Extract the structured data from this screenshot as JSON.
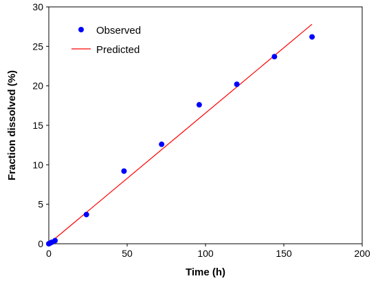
{
  "chart_data": {
    "type": "scatter",
    "title": "",
    "xlabel": "Time (h)",
    "ylabel": "Fraction dissolved (%)",
    "xlim": [
      0,
      200
    ],
    "ylim": [
      0,
      30
    ],
    "xticks": [
      0,
      50,
      100,
      150,
      200
    ],
    "yticks": [
      0,
      5,
      10,
      15,
      20,
      25,
      30
    ],
    "grid": false,
    "legend_position": "top-left",
    "series": [
      {
        "name": "Observed",
        "kind": "scatter",
        "color": "#0000ff",
        "x": [
          0,
          1,
          2,
          4,
          24,
          48,
          72,
          96,
          120,
          144,
          168
        ],
        "y": [
          0,
          0.1,
          0.2,
          0.4,
          3.7,
          9.2,
          12.6,
          17.6,
          20.2,
          23.7,
          26.2
        ]
      },
      {
        "name": "Predicted",
        "kind": "line",
        "color": "#ff0000",
        "x": [
          0,
          168
        ],
        "y": [
          0,
          27.8
        ]
      }
    ]
  }
}
